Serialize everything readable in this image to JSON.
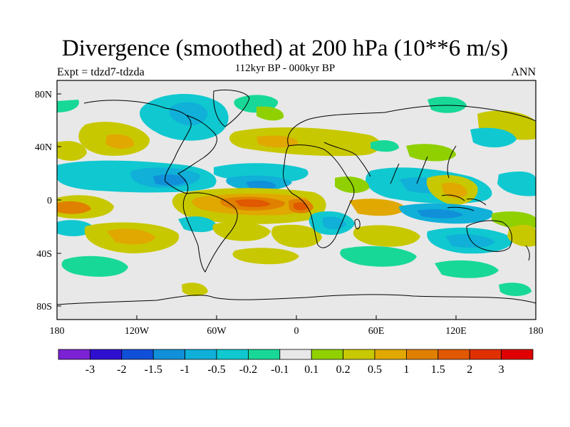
{
  "title": "Divergence (smoothed) at 200 hPa (10**6 m/s)",
  "subtitle": "112kyr BP - 000kyr BP",
  "experiment": "Expt = tdzd7-tdzda",
  "season": "ANN",
  "axes": {
    "x_ticks": [
      "180",
      "120W",
      "60W",
      "0",
      "60E",
      "120E",
      "180"
    ],
    "y_ticks": [
      "80N",
      "40N",
      "0",
      "40S",
      "80S"
    ]
  },
  "colorbar": {
    "colors": [
      "#7b22d4",
      "#3010d0",
      "#1050d8",
      "#1090d8",
      "#10b0d8",
      "#10c8d0",
      "#18d898",
      "#e8e8e8",
      "#90d000",
      "#c8c800",
      "#e0a800",
      "#e08000",
      "#e05800",
      "#e03000",
      "#e00000"
    ],
    "labels": [
      "-3",
      "-2",
      "-1.5",
      "-1",
      "-0.5",
      "-0.2",
      "-0.1",
      "0.1",
      "0.2",
      "0.5",
      "1",
      "1.5",
      "2",
      "3"
    ]
  },
  "style": {
    "ocean": "#e8e8e8",
    "coast": "#000000"
  }
}
